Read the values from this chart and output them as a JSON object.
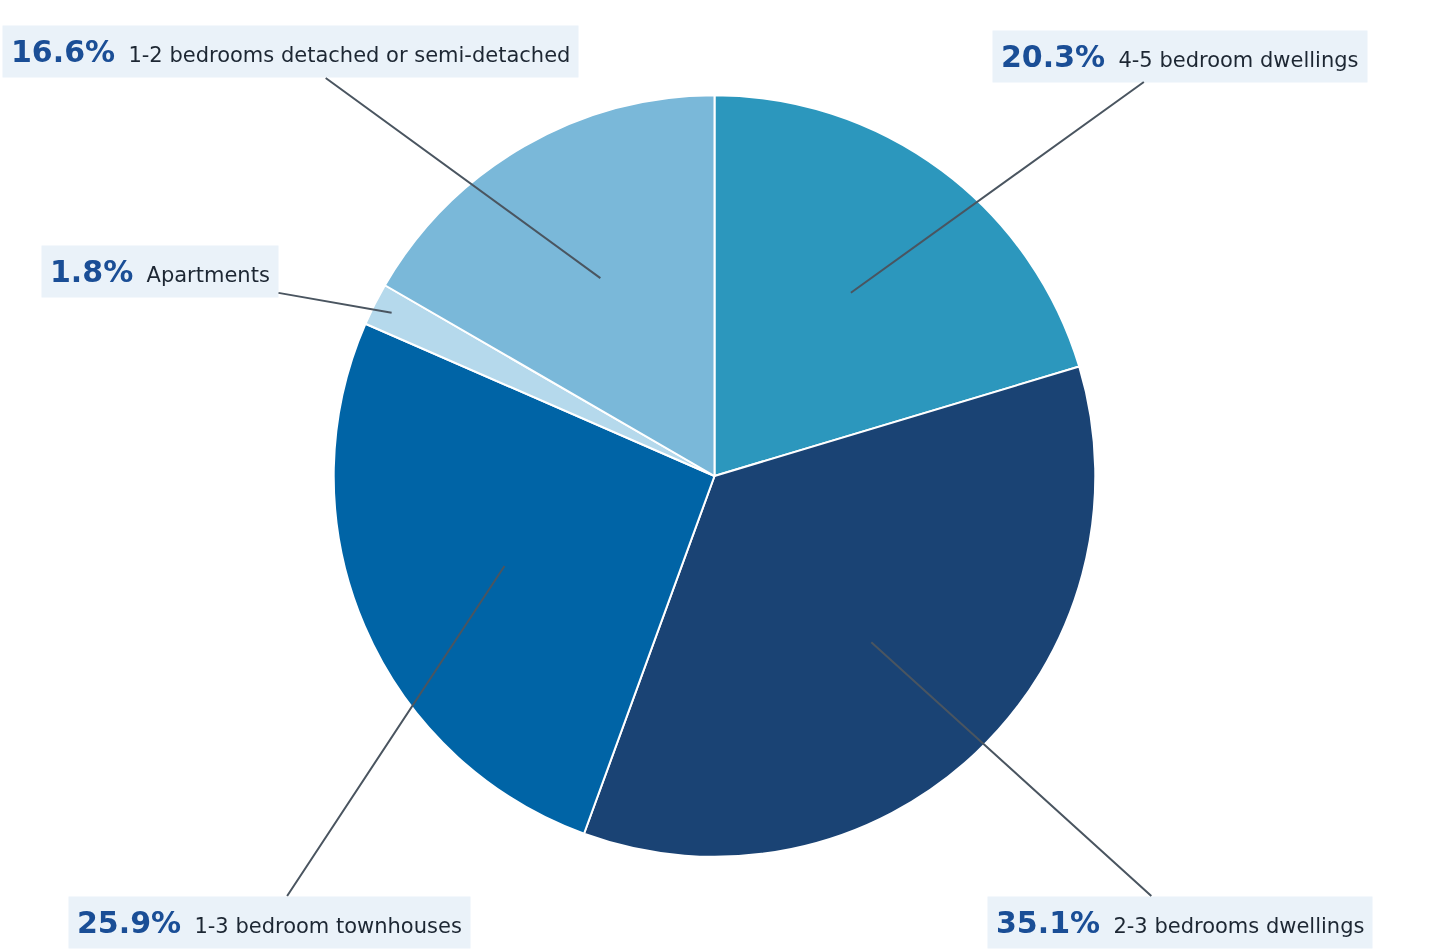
{
  "chart_data": {
    "type": "pie",
    "categories": [
      "4-5 bedroom dwellings",
      "2-3 bedrooms dwellings",
      "1-3 bedroom townhouses",
      "Apartments",
      "1-2 bedrooms detached or semi-detached"
    ],
    "values": [
      20.3,
      35.1,
      25.9,
      1.8,
      16.6
    ],
    "colors": [
      "#2c97bd",
      "#1a4374",
      "#0064a6",
      "#b5d9ec",
      "#7ab8d9"
    ],
    "value_labels": [
      "20.3%",
      "35.1%",
      "25.9%",
      "1.8%",
      "16.6%"
    ]
  }
}
